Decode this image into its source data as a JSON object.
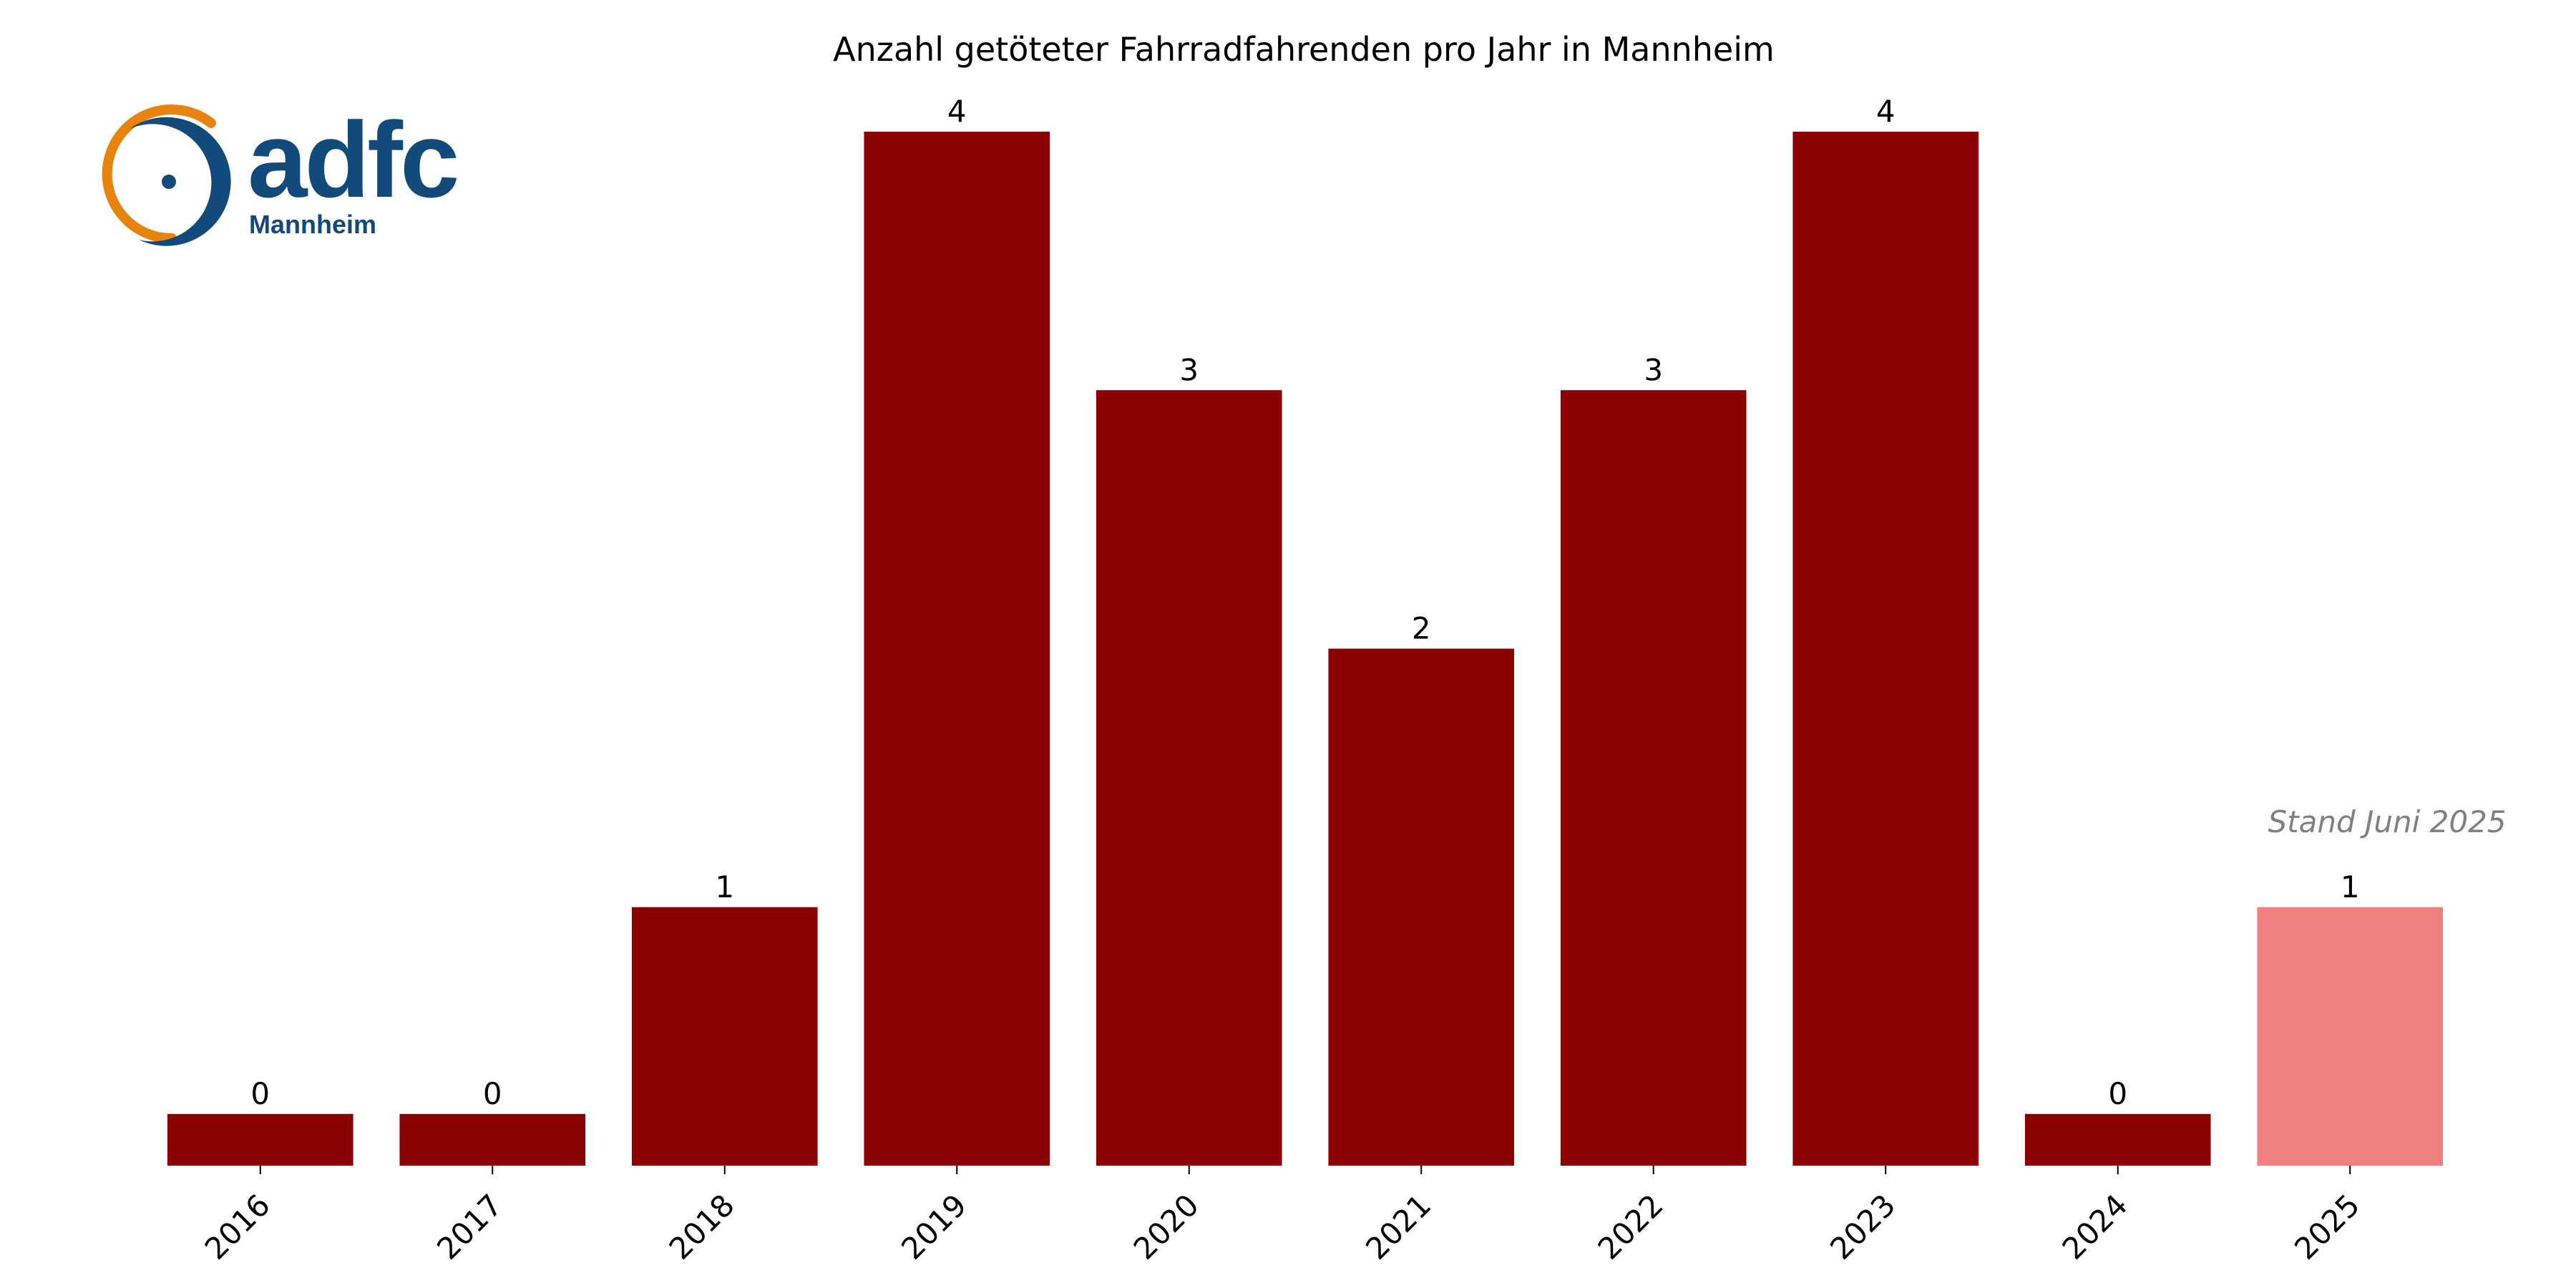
{
  "chart_data": {
    "type": "bar",
    "title": "Anzahl getöteter Fahrradfahrenden pro Jahr in Mannheim",
    "categories": [
      "2016",
      "2017",
      "2018",
      "2019",
      "2020",
      "2021",
      "2022",
      "2023",
      "2024",
      "2025"
    ],
    "values": [
      0,
      0,
      1,
      4,
      3,
      2,
      3,
      4,
      0,
      1
    ],
    "bar_labels": [
      "0",
      "0",
      "1",
      "4",
      "3",
      "2",
      "3",
      "4",
      "0",
      "1"
    ],
    "bar_colors": [
      "#8b0000",
      "#8b0000",
      "#8b0000",
      "#8b0000",
      "#8b0000",
      "#8b0000",
      "#8b0000",
      "#8b0000",
      "#8b0000",
      "#f08080"
    ],
    "xlabel": "",
    "ylabel": "",
    "ylim": [
      0,
      4
    ],
    "zero_bar_min_value": 0.2,
    "grid": false,
    "axes_visible": false,
    "annotation": "Stand Juni 2025"
  },
  "logo": {
    "wordmark": "adfc",
    "subtitle": "Mannheim",
    "colors": {
      "blue": "#134a7c",
      "orange": "#e8830e"
    }
  }
}
